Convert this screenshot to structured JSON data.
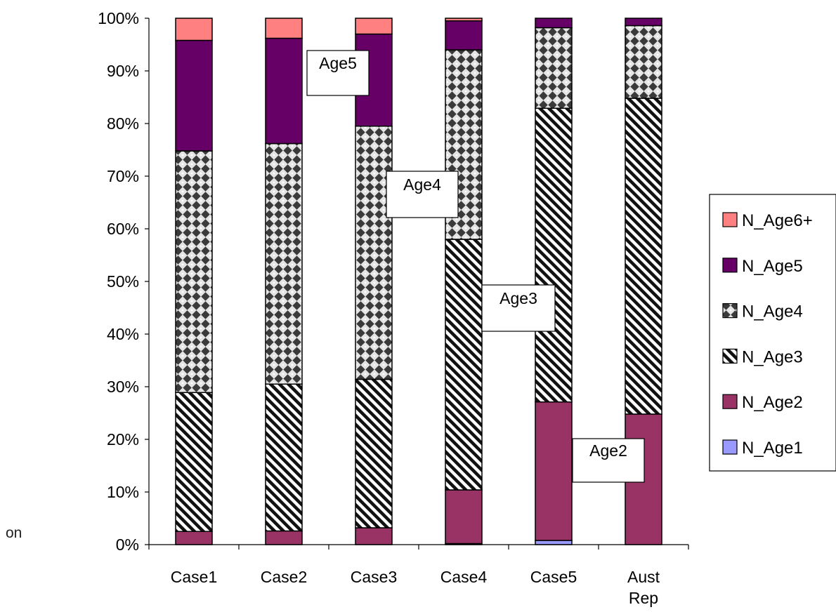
{
  "chart_data": {
    "type": "bar",
    "stacked": true,
    "normalized": true,
    "title": "",
    "xlabel": "",
    "ylabel": "",
    "ylim": [
      0,
      100
    ],
    "yticks": [
      "0%",
      "10%",
      "20%",
      "30%",
      "40%",
      "50%",
      "60%",
      "70%",
      "80%",
      "90%",
      "100%"
    ],
    "grid": false,
    "legend_position": "right",
    "categories": [
      "Case1",
      "Case2",
      "Case3",
      "Case4",
      "Case5",
      "Aust\nRep"
    ],
    "series": [
      {
        "name": "N_Age1",
        "color": "#9999ff",
        "pattern": "solid",
        "values": [
          0.0,
          0.0,
          0.0,
          0.2,
          0.8,
          0.0
        ]
      },
      {
        "name": "N_Age2",
        "color": "#993366",
        "pattern": "solid",
        "values": [
          2.5,
          2.6,
          3.2,
          10.2,
          26.3,
          24.8
        ]
      },
      {
        "name": "N_Age3",
        "color": "#ffffff",
        "pattern": "diagonal-stripe",
        "values": [
          26.4,
          27.9,
          28.2,
          47.6,
          55.8,
          60.0
        ]
      },
      {
        "name": "N_Age4",
        "color": "#333333",
        "pattern": "checker-diamond",
        "values": [
          45.9,
          45.7,
          48.1,
          36.0,
          15.3,
          13.8
        ]
      },
      {
        "name": "N_Age5",
        "color": "#660066",
        "pattern": "solid",
        "values": [
          21.0,
          20.0,
          17.5,
          5.5,
          1.8,
          1.4
        ]
      },
      {
        "name": "N_Age6+",
        "color": "#ff8080",
        "pattern": "solid",
        "values": [
          4.2,
          3.8,
          3.0,
          0.5,
          0.0,
          0.0
        ]
      }
    ],
    "legend_order": [
      "N_Age6+",
      "N_Age5",
      "N_Age4",
      "N_Age3",
      "N_Age2",
      "N_Age1"
    ],
    "annotations": [
      {
        "text": "Age5",
        "points_to": "N_Age5"
      },
      {
        "text": "Age4",
        "points_to": "N_Age4"
      },
      {
        "text": "Age3",
        "points_to": "N_Age3"
      },
      {
        "text": "Age2",
        "points_to": "N_Age2"
      }
    ]
  },
  "fragment_text": "on"
}
